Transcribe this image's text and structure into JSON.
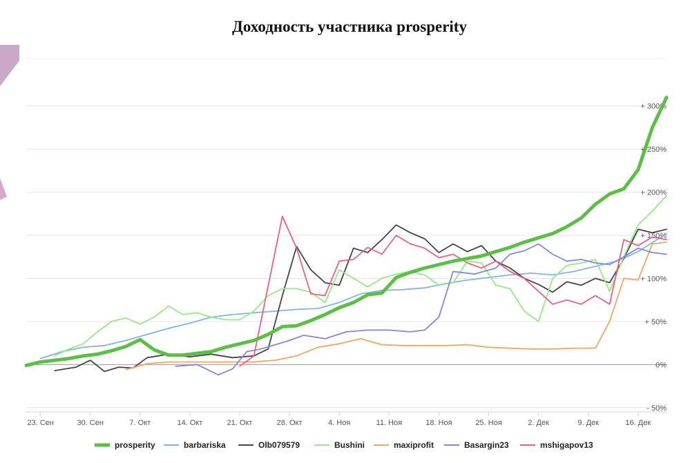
{
  "chart_data": {
    "type": "line",
    "title": "Доходность участника prosperity",
    "y_unit": "%",
    "ylim": [
      -55,
      355
    ],
    "y_ticks": [
      "- 50%",
      "0%",
      "+ 50%",
      "+ 100%",
      "+ 150%",
      "+ 200%",
      "+ 250%",
      "+ 300%"
    ],
    "y_tick_values": [
      -50,
      0,
      50,
      100,
      150,
      200,
      250,
      300
    ],
    "x_tick_labels": [
      "23. Сен",
      "30. Сен",
      "7. Окт",
      "14. Окт",
      "21. Окт",
      "28. Окт",
      "4. Ноя",
      "11. Ноя",
      "18. Ноя",
      "25. Ноя",
      "2. Дек",
      "9. Дек",
      "16. Дек"
    ],
    "x_range": [
      "2019-09-21",
      "2019-12-20"
    ],
    "grid": true,
    "legend_position": "bottom",
    "series": [
      {
        "name": "prosperity",
        "color": "#5bbf45",
        "x": [
          "2019-09-21",
          "2019-09-23",
          "2019-09-25",
          "2019-09-27",
          "2019-09-29",
          "2019-10-01",
          "2019-10-03",
          "2019-10-05",
          "2019-10-07",
          "2019-10-09",
          "2019-10-11",
          "2019-10-13",
          "2019-10-15",
          "2019-10-17",
          "2019-10-19",
          "2019-10-21",
          "2019-10-23",
          "2019-10-25",
          "2019-10-27",
          "2019-10-29",
          "2019-10-31",
          "2019-11-02",
          "2019-11-04",
          "2019-11-06",
          "2019-11-08",
          "2019-11-10",
          "2019-11-12",
          "2019-11-14",
          "2019-11-16",
          "2019-11-18",
          "2019-11-20",
          "2019-11-22",
          "2019-11-24",
          "2019-11-26",
          "2019-11-28",
          "2019-11-30",
          "2019-12-02",
          "2019-12-04",
          "2019-12-06",
          "2019-12-08",
          "2019-12-10",
          "2019-12-12",
          "2019-12-14",
          "2019-12-16",
          "2019-12-18",
          "2019-12-20"
        ],
        "values": [
          -1,
          3,
          5,
          7,
          10,
          12,
          16,
          21,
          29,
          17,
          11,
          11,
          13,
          15,
          20,
          24,
          28,
          35,
          44,
          45,
          51,
          58,
          66,
          72,
          81,
          83,
          101,
          107,
          112,
          116,
          120,
          123,
          126,
          131,
          136,
          142,
          147,
          152,
          160,
          170,
          186,
          198,
          204,
          226,
          275,
          310
        ]
      },
      {
        "name": "barbariska",
        "color": "#7cb5ec",
        "x": [
          "2019-09-23",
          "2019-09-26",
          "2019-09-29",
          "2019-10-02",
          "2019-10-05",
          "2019-10-08",
          "2019-10-11",
          "2019-10-14",
          "2019-10-17",
          "2019-10-20",
          "2019-10-23",
          "2019-10-26",
          "2019-10-29",
          "2019-11-01",
          "2019-11-04",
          "2019-11-07",
          "2019-11-10",
          "2019-11-13",
          "2019-11-16",
          "2019-11-19",
          "2019-11-22",
          "2019-11-25",
          "2019-11-28",
          "2019-12-01",
          "2019-12-04",
          "2019-12-07",
          "2019-12-10",
          "2019-12-13",
          "2019-12-16",
          "2019-12-20"
        ],
        "values": [
          7,
          15,
          20,
          22,
          28,
          35,
          42,
          48,
          55,
          58,
          60,
          62,
          64,
          65,
          72,
          82,
          86,
          87,
          89,
          94,
          98,
          101,
          104,
          106,
          104,
          108,
          114,
          120,
          131,
          152
        ]
      },
      {
        "name": "Olb079579",
        "color": "#434348",
        "x": [
          "2019-09-25",
          "2019-09-28",
          "2019-09-30",
          "2019-10-02",
          "2019-10-04",
          "2019-10-06",
          "2019-10-08",
          "2019-10-11",
          "2019-10-14",
          "2019-10-17",
          "2019-10-20",
          "2019-10-23",
          "2019-10-25",
          "2019-10-27",
          "2019-10-29",
          "2019-10-31",
          "2019-11-02",
          "2019-11-04",
          "2019-11-06",
          "2019-11-08",
          "2019-11-10",
          "2019-11-12",
          "2019-11-14",
          "2019-11-16",
          "2019-11-18",
          "2019-11-20",
          "2019-11-22",
          "2019-11-24",
          "2019-11-26",
          "2019-11-28",
          "2019-11-30",
          "2019-12-02",
          "2019-12-04",
          "2019-12-06",
          "2019-12-08",
          "2019-12-10",
          "2019-12-12",
          "2019-12-14",
          "2019-12-16",
          "2019-12-18",
          "2019-12-20"
        ],
        "values": [
          -7,
          -3,
          5,
          -8,
          -3,
          -4,
          8,
          12,
          9,
          12,
          8,
          10,
          18,
          80,
          137,
          110,
          95,
          92,
          135,
          130,
          145,
          162,
          153,
          146,
          130,
          140,
          131,
          138,
          120,
          112,
          100,
          93,
          84,
          96,
          92,
          100,
          95,
          123,
          157,
          153,
          157
        ]
      },
      {
        "name": "Bushini",
        "color": "#90ed7d",
        "x": [
          "2019-09-25",
          "2019-09-27",
          "2019-09-29",
          "2019-10-01",
          "2019-10-03",
          "2019-10-05",
          "2019-10-07",
          "2019-10-09",
          "2019-10-11",
          "2019-10-13",
          "2019-10-15",
          "2019-10-17",
          "2019-10-19",
          "2019-10-21",
          "2019-10-23",
          "2019-10-25",
          "2019-10-27",
          "2019-10-29",
          "2019-10-31",
          "2019-11-02",
          "2019-11-04",
          "2019-11-06",
          "2019-11-08",
          "2019-11-10",
          "2019-11-12",
          "2019-11-14",
          "2019-11-16",
          "2019-11-18",
          "2019-11-20",
          "2019-11-22",
          "2019-11-24",
          "2019-11-26",
          "2019-11-28",
          "2019-11-30",
          "2019-12-02",
          "2019-12-04",
          "2019-12-06",
          "2019-12-08",
          "2019-12-10",
          "2019-12-12",
          "2019-12-14",
          "2019-12-16",
          "2019-12-18",
          "2019-12-20"
        ],
        "values": [
          10,
          18,
          24,
          38,
          50,
          54,
          47,
          55,
          68,
          58,
          60,
          55,
          52,
          52,
          62,
          80,
          88,
          88,
          84,
          72,
          110,
          100,
          90,
          100,
          105,
          108,
          104,
          92,
          95,
          120,
          118,
          92,
          88,
          62,
          50,
          100,
          115,
          118,
          122,
          85,
          125,
          162,
          178,
          196
        ]
      },
      {
        "name": "maxiprofit",
        "color": "#f7a35c",
        "x": [
          "2019-10-05",
          "2019-10-08",
          "2019-10-11",
          "2019-10-14",
          "2019-10-17",
          "2019-10-20",
          "2019-10-23",
          "2019-10-26",
          "2019-10-29",
          "2019-11-01",
          "2019-11-04",
          "2019-11-07",
          "2019-11-10",
          "2019-11-13",
          "2019-11-16",
          "2019-11-19",
          "2019-11-22",
          "2019-11-25",
          "2019-11-28",
          "2019-12-01",
          "2019-12-04",
          "2019-12-07",
          "2019-12-10",
          "2019-12-12",
          "2019-12-14",
          "2019-12-16",
          "2019-12-18",
          "2019-12-20"
        ],
        "values": [
          -6,
          1,
          3,
          3,
          3,
          3,
          3,
          5,
          10,
          20,
          24,
          30,
          23,
          22,
          22,
          22,
          23,
          20,
          19,
          18,
          18,
          19,
          19,
          50,
          100,
          98,
          140,
          142
        ]
      },
      {
        "name": "Basargin23",
        "color": "#8085e9",
        "x": [
          "2019-10-12",
          "2019-10-15",
          "2019-10-18",
          "2019-10-20",
          "2019-10-22",
          "2019-10-24",
          "2019-10-26",
          "2019-10-28",
          "2019-10-30",
          "2019-11-02",
          "2019-11-05",
          "2019-11-08",
          "2019-11-11",
          "2019-11-14",
          "2019-11-16",
          "2019-11-18",
          "2019-11-20",
          "2019-11-23",
          "2019-11-26",
          "2019-11-28",
          "2019-11-30",
          "2019-12-02",
          "2019-12-04",
          "2019-12-06",
          "2019-12-08",
          "2019-12-10",
          "2019-12-12",
          "2019-12-14",
          "2019-12-16",
          "2019-12-18",
          "2019-12-20"
        ],
        "values": [
          -2,
          0,
          -12,
          -5,
          15,
          18,
          23,
          28,
          34,
          30,
          38,
          40,
          40,
          38,
          40,
          55,
          108,
          105,
          112,
          128,
          132,
          140,
          128,
          120,
          122,
          118,
          116,
          125,
          135,
          130,
          128
        ]
      },
      {
        "name": "mshigapov13",
        "color": "#f15c80",
        "x": [
          "2019-10-21",
          "2019-10-23",
          "2019-10-27",
          "2019-10-29",
          "2019-10-31",
          "2019-11-02",
          "2019-11-04",
          "2019-11-06",
          "2019-11-08",
          "2019-11-10",
          "2019-11-12",
          "2019-11-14",
          "2019-11-16",
          "2019-11-18",
          "2019-11-20",
          "2019-11-22",
          "2019-11-24",
          "2019-11-26",
          "2019-11-28",
          "2019-11-30",
          "2019-12-02",
          "2019-12-04",
          "2019-12-06",
          "2019-12-08",
          "2019-12-10",
          "2019-12-12",
          "2019-12-14",
          "2019-12-16",
          "2019-12-18",
          "2019-12-20"
        ],
        "values": [
          -2,
          10,
          172,
          135,
          82,
          80,
          120,
          122,
          136,
          128,
          150,
          140,
          135,
          124,
          128,
          118,
          112,
          120,
          108,
          100,
          85,
          70,
          75,
          70,
          80,
          70,
          145,
          138,
          148,
          145
        ]
      }
    ]
  }
}
